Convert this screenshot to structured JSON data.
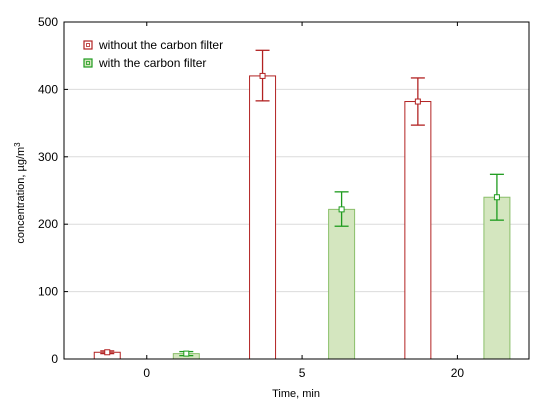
{
  "chart_data": {
    "type": "bar",
    "title": "",
    "xlabel": "Time, min",
    "ylabel_main": "concentration, µg/m",
    "ylabel_sup": "3",
    "categories": [
      "0",
      "5",
      "20"
    ],
    "ylim": [
      0,
      500
    ],
    "yticks": [
      0,
      100,
      200,
      300,
      400,
      500
    ],
    "grid": true,
    "legend_position": "top-left",
    "series": [
      {
        "name": "without the carbon filter",
        "values": [
          10,
          420,
          382
        ],
        "error_low": [
          8,
          383,
          347
        ],
        "error_high": [
          12,
          458,
          417
        ],
        "bar_fill": "#ffffff",
        "bar_stroke": "#b22222",
        "color": "#b22222"
      },
      {
        "name": "with the carbon filter",
        "values": [
          8,
          222,
          240
        ],
        "error_low": [
          5,
          197,
          206
        ],
        "error_high": [
          11,
          248,
          274
        ],
        "bar_fill": "#d4e6bf",
        "bar_stroke": "#8bbf6a",
        "color": "#1e9b1e"
      }
    ]
  }
}
